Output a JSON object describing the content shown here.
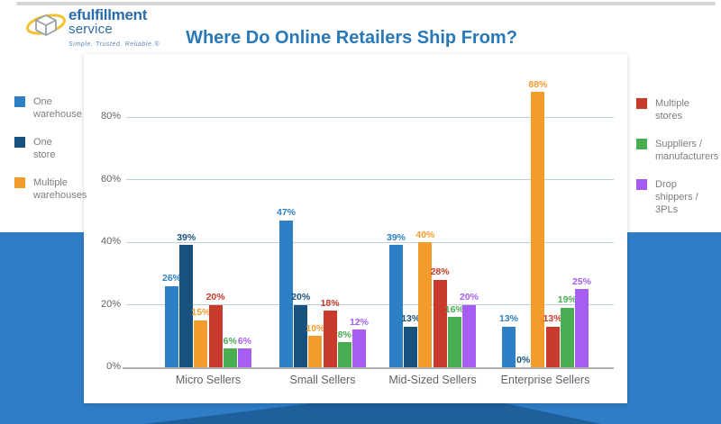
{
  "brand": {
    "name_top": "efulfillment",
    "name_bottom": "service",
    "tagline": "Simple. Trusted. Reliable.®"
  },
  "title": "Where Do Online Retailers Ship From?",
  "colors": {
    "page_background": "#FFFFFF",
    "banner_blue": "#2E7DC6",
    "banner_blue_dark": "#1F5F9C",
    "title_text": "#2979B9",
    "grid_line": "#BDD0DA",
    "axis_line": "#B0B0B0",
    "tick_text": "#636363",
    "category_text": "#5F6368",
    "legend_text": "#7D7D7D",
    "brand_text": "#2B6CAE",
    "tagline_text": "#5B87B5",
    "logo_swoosh": "#F2C230",
    "logo_cube": "#9AA0A6",
    "top_strip": "#D6D6D6"
  },
  "chart_data": {
    "type": "bar",
    "title": "Where Do Online Retailers Ship From?",
    "categories": [
      "Micro Sellers",
      "Small Sellers",
      "Mid-Sized Sellers",
      "Enterprise Sellers"
    ],
    "series": [
      {
        "name": "One warehouse",
        "legend_label": "One\nwarehouse",
        "color": "#2D80C5",
        "values": [
          26,
          47,
          39,
          13
        ]
      },
      {
        "name": "One store",
        "legend_label": "One\nstore",
        "color": "#17527E",
        "values": [
          39,
          20,
          13,
          0
        ]
      },
      {
        "name": "Multiple warehouses",
        "legend_label": "Multiple\nwarehouses",
        "color": "#F39B2D",
        "values": [
          15,
          10,
          40,
          88
        ]
      },
      {
        "name": "Multiple stores",
        "legend_label": "Multiple\nstores",
        "color": "#C83A2B",
        "values": [
          20,
          18,
          28,
          13
        ]
      },
      {
        "name": "Suppliers / manufacturers",
        "legend_label": "Suppliers /\nmanufacturers",
        "color": "#4AAD52",
        "values": [
          6,
          8,
          16,
          19
        ]
      },
      {
        "name": "Drop shippers / 3PLs",
        "legend_label": "Drop shippers /\n3PLs",
        "color": "#A55DF2",
        "values": [
          6,
          12,
          20,
          25
        ]
      }
    ],
    "value_label_format": "{v}%",
    "yticks": [
      "0%",
      "20%",
      "40%",
      "60%",
      "80%"
    ],
    "xlabel": "",
    "ylabel": "",
    "grid": true,
    "legend_left_series": [
      0,
      1,
      2
    ],
    "legend_right_series": [
      3,
      4,
      5
    ],
    "legend_position": "left-and-right"
  }
}
